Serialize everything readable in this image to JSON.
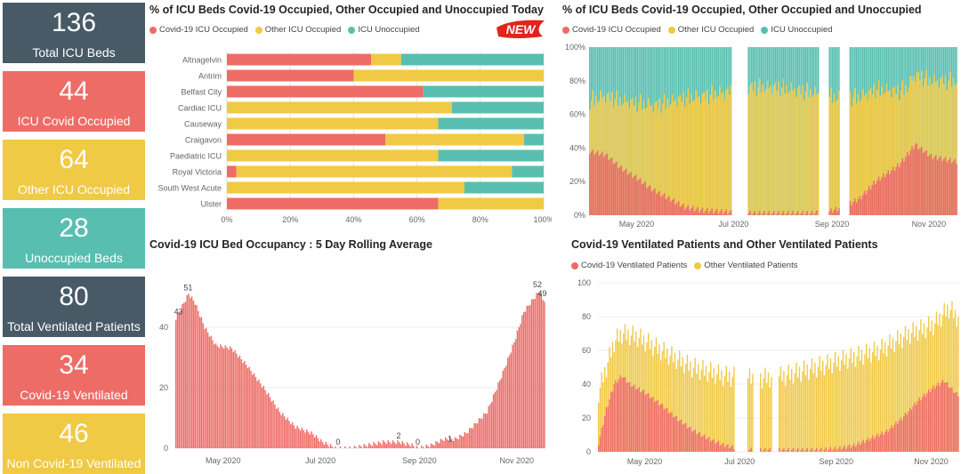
{
  "colors": {
    "covid": "#ee6c66",
    "other": "#f0c945",
    "unocc": "#58bfb0",
    "dark": "#475a66",
    "axis": "#777777"
  },
  "kpis": [
    {
      "value": "136",
      "label": "Total ICU Beds",
      "color": "#475a66"
    },
    {
      "value": "44",
      "label": "ICU Covid Occupied",
      "color": "#ee6c66"
    },
    {
      "value": "64",
      "label": "Other ICU Occupied",
      "color": "#f0c945"
    },
    {
      "value": "28",
      "label": "Unoccupied Beds",
      "color": "#58bfb0"
    },
    {
      "value": "80",
      "label": "Total Ventilated Patients",
      "color": "#475a66"
    },
    {
      "value": "34",
      "label": "Covid-19 Ventilated",
      "color": "#ee6c66"
    },
    {
      "value": "46",
      "label": "Non Covid-19 Ventilated",
      "color": "#f0c945"
    }
  ],
  "badge": {
    "text": "NEW",
    "icon": "new-badge-icon"
  },
  "chart_data": [
    {
      "type": "bar",
      "orientation": "horizontal-stacked-100",
      "title": "% of ICU Beds Covid-19 Occupied, Other Occupied and Unoccupied Today",
      "legend": [
        "Covid-19 ICU Occupied",
        "Other ICU Occupied",
        "ICU Unoccupied"
      ],
      "legend_position": "top-left",
      "categories": [
        "Altnagelvin",
        "Antrim",
        "Belfast City",
        "Cardiac ICU",
        "Causeway",
        "Craigavon",
        "Paediatric ICU",
        "Royal Victoria",
        "South West Acute",
        "Ulster"
      ],
      "series": [
        {
          "name": "Covid-19 ICU Occupied",
          "values": [
            45.5,
            40,
            62,
            0,
            0,
            50,
            0,
            3,
            0,
            66.7
          ]
        },
        {
          "name": "Other ICU Occupied",
          "values": [
            9.5,
            60,
            0,
            71,
            66.7,
            43.8,
            66.7,
            87,
            75,
            33.3
          ]
        },
        {
          "name": "ICU Unoccupied",
          "values": [
            45,
            0,
            38,
            29,
            33.3,
            6.2,
            33.3,
            10,
            25,
            0
          ]
        }
      ],
      "xticks": [
        "0%",
        "20%",
        "40%",
        "60%",
        "80%",
        "100%"
      ],
      "xlim": [
        0,
        100
      ]
    },
    {
      "type": "bar",
      "orientation": "vertical-stacked-100",
      "title": "% of ICU Beds Covid-19 Occupied, Other Occupied and Unoccupied",
      "legend": [
        "Covid-19 ICU Occupied",
        "Other ICU Occupied",
        "ICU Unoccupied"
      ],
      "legend_position": "top-left",
      "yticks": [
        "0%",
        "20%",
        "40%",
        "60%",
        "80%",
        "100%"
      ],
      "xticks": [
        "May 2020",
        "Jul 2020",
        "Sep 2020",
        "Nov 2020"
      ],
      "ylim": [
        0,
        100
      ],
      "x_range": [
        "2020-04-01",
        "2020-11-18"
      ],
      "covid_key": [
        [
          0,
          38
        ],
        [
          10,
          36
        ],
        [
          20,
          28
        ],
        [
          30,
          22
        ],
        [
          40,
          15
        ],
        [
          50,
          10
        ],
        [
          60,
          5
        ],
        [
          70,
          3
        ],
        [
          85,
          2
        ],
        [
          100,
          1
        ],
        [
          120,
          1
        ],
        [
          140,
          1
        ],
        [
          150,
          2
        ],
        [
          160,
          5
        ],
        [
          170,
          10
        ],
        [
          180,
          20
        ],
        [
          195,
          30
        ],
        [
          205,
          42
        ],
        [
          215,
          35
        ],
        [
          230,
          32
        ]
      ],
      "other_key": [
        [
          0,
          30
        ],
        [
          20,
          40
        ],
        [
          40,
          50
        ],
        [
          60,
          65
        ],
        [
          80,
          70
        ],
        [
          100,
          75
        ],
        [
          120,
          75
        ],
        [
          140,
          72
        ],
        [
          160,
          65
        ],
        [
          180,
          55
        ],
        [
          200,
          40
        ],
        [
          215,
          45
        ],
        [
          230,
          48
        ]
      ],
      "gaps": [
        [
          90,
          99
        ],
        [
          145,
          150
        ],
        [
          158,
          163
        ]
      ]
    },
    {
      "type": "bar",
      "title": "Covid-19 ICU Bed Occupancy : 5 Day Rolling Average",
      "yticks": [
        "0",
        "20",
        "40"
      ],
      "xticks": [
        "May 2020",
        "Jul 2020",
        "Sep 2020",
        "Nov 2020"
      ],
      "ylim": [
        0,
        57
      ],
      "x_range": [
        "2020-04-01",
        "2020-11-18"
      ],
      "key": [
        [
          0,
          43
        ],
        [
          5,
          48
        ],
        [
          8,
          51
        ],
        [
          12,
          48
        ],
        [
          18,
          40
        ],
        [
          25,
          34
        ],
        [
          35,
          33
        ],
        [
          45,
          27
        ],
        [
          55,
          20
        ],
        [
          65,
          12
        ],
        [
          75,
          7
        ],
        [
          85,
          5
        ],
        [
          92,
          2
        ],
        [
          100,
          0
        ],
        [
          110,
          0
        ],
        [
          120,
          1
        ],
        [
          130,
          2
        ],
        [
          140,
          2
        ],
        [
          148,
          1
        ],
        [
          152,
          0
        ],
        [
          160,
          1
        ],
        [
          168,
          3
        ],
        [
          175,
          3
        ],
        [
          182,
          5
        ],
        [
          195,
          12
        ],
        [
          205,
          25
        ],
        [
          212,
          35
        ],
        [
          218,
          45
        ],
        [
          225,
          50
        ],
        [
          228,
          52
        ],
        [
          230,
          49
        ]
      ],
      "annotations": [
        {
          "x": 2,
          "y": 43,
          "text": "43"
        },
        {
          "x": 8,
          "y": 51,
          "text": "51"
        },
        {
          "x": 102,
          "y": 0,
          "text": "0"
        },
        {
          "x": 140,
          "y": 2,
          "text": "2"
        },
        {
          "x": 152,
          "y": 0,
          "text": "0"
        },
        {
          "x": 172,
          "y": 1,
          "text": "1"
        },
        {
          "x": 227,
          "y": 52,
          "text": "52"
        },
        {
          "x": 230,
          "y": 49,
          "text": "49"
        }
      ]
    },
    {
      "type": "bar",
      "orientation": "vertical-stacked",
      "title": "Covid-19 Ventilated Patients and Other Ventilated Patients",
      "legend": [
        "Covid-19 Ventilated Patients",
        "Other Ventilated Patients"
      ],
      "legend_position": "top-left",
      "yticks": [
        "0",
        "20",
        "40",
        "60",
        "80",
        "100"
      ],
      "xticks": [
        "May 2020",
        "Jul 2020",
        "Sep 2020",
        "Nov 2020"
      ],
      "ylim": [
        0,
        100
      ],
      "x_range": [
        "2020-04-01",
        "2020-11-18"
      ],
      "covid_key": [
        [
          0,
          5
        ],
        [
          5,
          25
        ],
        [
          10,
          40
        ],
        [
          15,
          45
        ],
        [
          20,
          40
        ],
        [
          30,
          35
        ],
        [
          40,
          28
        ],
        [
          50,
          20
        ],
        [
          60,
          13
        ],
        [
          70,
          8
        ],
        [
          80,
          4
        ],
        [
          90,
          2
        ],
        [
          100,
          1
        ],
        [
          120,
          1
        ],
        [
          140,
          1
        ],
        [
          155,
          2
        ],
        [
          165,
          4
        ],
        [
          175,
          8
        ],
        [
          185,
          12
        ],
        [
          195,
          20
        ],
        [
          205,
          30
        ],
        [
          215,
          38
        ],
        [
          222,
          42
        ],
        [
          230,
          34
        ]
      ],
      "total_key": [
        [
          0,
          35
        ],
        [
          5,
          50
        ],
        [
          10,
          65
        ],
        [
          15,
          70
        ],
        [
          25,
          68
        ],
        [
          40,
          60
        ],
        [
          60,
          50
        ],
        [
          80,
          45
        ],
        [
          100,
          43
        ],
        [
          120,
          45
        ],
        [
          140,
          50
        ],
        [
          160,
          55
        ],
        [
          180,
          60
        ],
        [
          200,
          70
        ],
        [
          215,
          75
        ],
        [
          225,
          85
        ],
        [
          230,
          80
        ]
      ],
      "gaps": [
        [
          88,
          95
        ],
        [
          100,
          103
        ],
        [
          112,
          115
        ]
      ]
    }
  ]
}
